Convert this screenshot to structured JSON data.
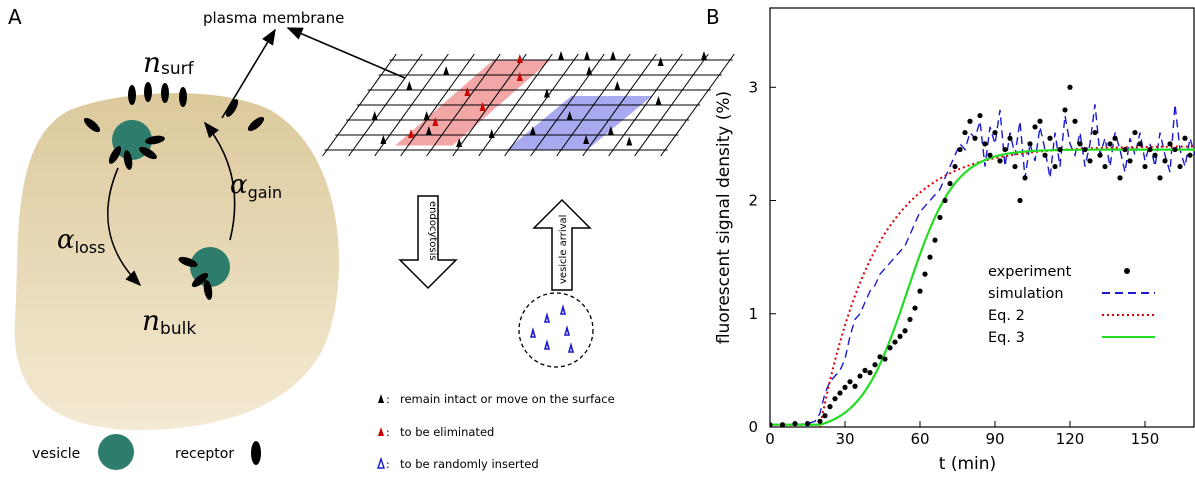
{
  "panel_a": {
    "label": "A",
    "plasma_membrane": "plasma membrane",
    "n_surf": {
      "sym": "n",
      "sub": "surf"
    },
    "n_bulk": {
      "sym": "n",
      "sub": "bulk"
    },
    "alpha_loss": {
      "sym": "α",
      "sub": "loss"
    },
    "alpha_gain": {
      "sym": "α",
      "sub": "gain"
    },
    "endocytosis": "endocytosis",
    "vesicle_arrival": "vesicle arrival",
    "legend": {
      "vesicle": "vesicle",
      "receptor": "receptor",
      "remain": "remain intact or move on the surface",
      "eliminated": "to be eliminated",
      "inserted": "to be randomly inserted",
      "colon": ":"
    },
    "colors": {
      "cell": "#e3d3ab",
      "vesicle": "#2e7d6c",
      "eliminate_region": "#f2a6a6",
      "insert_region": "#a9a9f0"
    }
  },
  "panel_b": {
    "label": "B",
    "chart_data": {
      "type": "line",
      "xlabel": "t (min)",
      "ylabel": "fluorescent signal density (%)",
      "xlim": [
        0,
        170
      ],
      "ylim": [
        0,
        3.7
      ],
      "xticks": [
        "0",
        "30",
        "60",
        "90",
        "120",
        "150"
      ],
      "yticks": [
        "0",
        "1",
        "2",
        "3"
      ],
      "legend_position": "center-right",
      "series": [
        {
          "name": "experiment",
          "style": "dots",
          "color": "#000000",
          "x": [
            0,
            5,
            10,
            15,
            20,
            22,
            24,
            26,
            28,
            30,
            32,
            34,
            36,
            38,
            40,
            42,
            44,
            46,
            48,
            50,
            52,
            54,
            56,
            58,
            60,
            62,
            64,
            66,
            68,
            70,
            72,
            74,
            76,
            78,
            80,
            82,
            84,
            86,
            88,
            90,
            92,
            94,
            96,
            98,
            100,
            102,
            104,
            106,
            108,
            110,
            112,
            114,
            116,
            118,
            120,
            122,
            124,
            126,
            128,
            130,
            132,
            134,
            136,
            138,
            140,
            142,
            144,
            146,
            148,
            150,
            152,
            154,
            156,
            158,
            160,
            162,
            164,
            166,
            168
          ],
          "y": [
            0.02,
            0.02,
            0.03,
            0.03,
            0.05,
            0.1,
            0.18,
            0.25,
            0.3,
            0.35,
            0.4,
            0.36,
            0.45,
            0.5,
            0.48,
            0.55,
            0.62,
            0.6,
            0.7,
            0.75,
            0.8,
            0.85,
            0.95,
            1.05,
            1.2,
            1.35,
            1.5,
            1.65,
            1.85,
            2.0,
            2.15,
            2.3,
            2.45,
            2.6,
            2.7,
            2.55,
            2.75,
            2.5,
            2.4,
            2.6,
            2.35,
            2.45,
            2.55,
            2.3,
            2.0,
            2.2,
            2.5,
            2.65,
            2.7,
            2.4,
            2.55,
            2.3,
            2.45,
            2.8,
            3.0,
            2.7,
            2.5,
            2.45,
            2.35,
            2.6,
            2.4,
            2.3,
            2.5,
            2.55,
            2.2,
            2.45,
            2.35,
            2.6,
            2.5,
            2.3,
            2.45,
            2.4,
            2.2,
            2.35,
            2.5,
            2.45,
            2.3,
            2.55,
            2.4
          ]
        },
        {
          "name": "simulation",
          "style": "dashed",
          "color": "#1a1acc",
          "x": [
            0,
            5,
            10,
            15,
            18,
            20,
            22,
            24,
            26,
            28,
            30,
            32,
            34,
            36,
            38,
            40,
            42,
            44,
            46,
            48,
            50,
            52,
            54,
            56,
            58,
            60,
            62,
            64,
            66,
            68,
            70,
            72,
            74,
            76,
            78,
            80,
            82,
            84,
            86,
            88,
            90,
            92,
            94,
            96,
            98,
            100,
            102,
            104,
            106,
            108,
            110,
            112,
            114,
            116,
            118,
            120,
            122,
            124,
            126,
            128,
            130,
            132,
            134,
            136,
            138,
            140,
            142,
            144,
            146,
            148,
            150,
            152,
            154,
            156,
            158,
            160,
            162,
            164,
            166,
            168,
            170
          ],
          "y": [
            0.02,
            0.02,
            0.02,
            0.03,
            0.05,
            0.12,
            0.3,
            0.4,
            0.45,
            0.5,
            0.6,
            0.8,
            0.95,
            1.0,
            1.1,
            1.2,
            1.25,
            1.35,
            1.4,
            1.45,
            1.5,
            1.55,
            1.6,
            1.7,
            1.8,
            1.9,
            1.95,
            2.0,
            2.05,
            2.1,
            2.2,
            2.3,
            2.4,
            2.5,
            2.45,
            2.6,
            2.55,
            2.7,
            2.3,
            2.65,
            2.5,
            2.8,
            2.3,
            2.6,
            2.4,
            2.7,
            2.2,
            2.5,
            2.35,
            2.65,
            2.45,
            2.2,
            2.6,
            2.3,
            2.75,
            2.5,
            2.4,
            2.6,
            2.3,
            2.5,
            2.85,
            2.4,
            2.55,
            2.3,
            2.6,
            2.45,
            2.25,
            2.55,
            2.4,
            2.6,
            2.35,
            2.5,
            2.3,
            2.6,
            2.4,
            2.25,
            2.85,
            2.45,
            2.3,
            2.55,
            2.4
          ]
        },
        {
          "name": "Eq. 2",
          "style": "dotted",
          "color": "#dd0000",
          "model": {
            "t0": 20,
            "amp": 2.48,
            "k": 0.045
          }
        },
        {
          "name": "Eq. 3",
          "style": "solid",
          "color": "#22dd22",
          "model": {
            "t0": 20,
            "amp": 2.45,
            "mid": 55,
            "k": 0.105
          }
        }
      ]
    }
  }
}
